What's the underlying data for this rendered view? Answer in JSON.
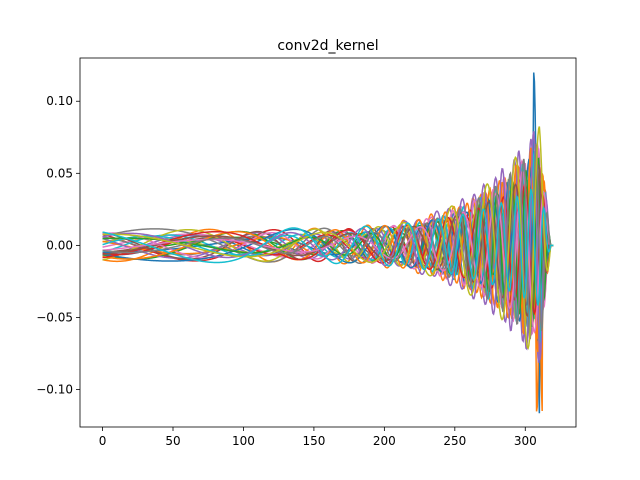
{
  "chart_data": {
    "type": "line",
    "title": "conv2d_kernel",
    "xlabel": "",
    "ylabel": "",
    "xlim": [
      -16,
      336
    ],
    "ylim": [
      -0.126,
      0.13
    ],
    "x_ticks": [
      0,
      50,
      100,
      150,
      200,
      250,
      300
    ],
    "x_tick_labels": [
      "0",
      "50",
      "100",
      "150",
      "200",
      "250",
      "300"
    ],
    "y_ticks": [
      -0.1,
      -0.05,
      0.0,
      0.05,
      0.1
    ],
    "y_tick_labels": [
      "−0.10",
      "−0.05",
      "0.00",
      "0.05",
      "0.10"
    ],
    "grid": false,
    "legend": "none",
    "x_range_of_series": [
      0,
      320
    ],
    "peak_positive": {
      "x": 308,
      "y": 0.12
    },
    "peak_negative": {
      "x": 310,
      "y": -0.116
    },
    "series_count": 30,
    "palette": [
      "#1f77b4",
      "#ff7f0e",
      "#2ca02c",
      "#d62728",
      "#9467bd",
      "#8c564b",
      "#e377c2",
      "#7f7f7f",
      "#bcbd22",
      "#17becf"
    ]
  }
}
